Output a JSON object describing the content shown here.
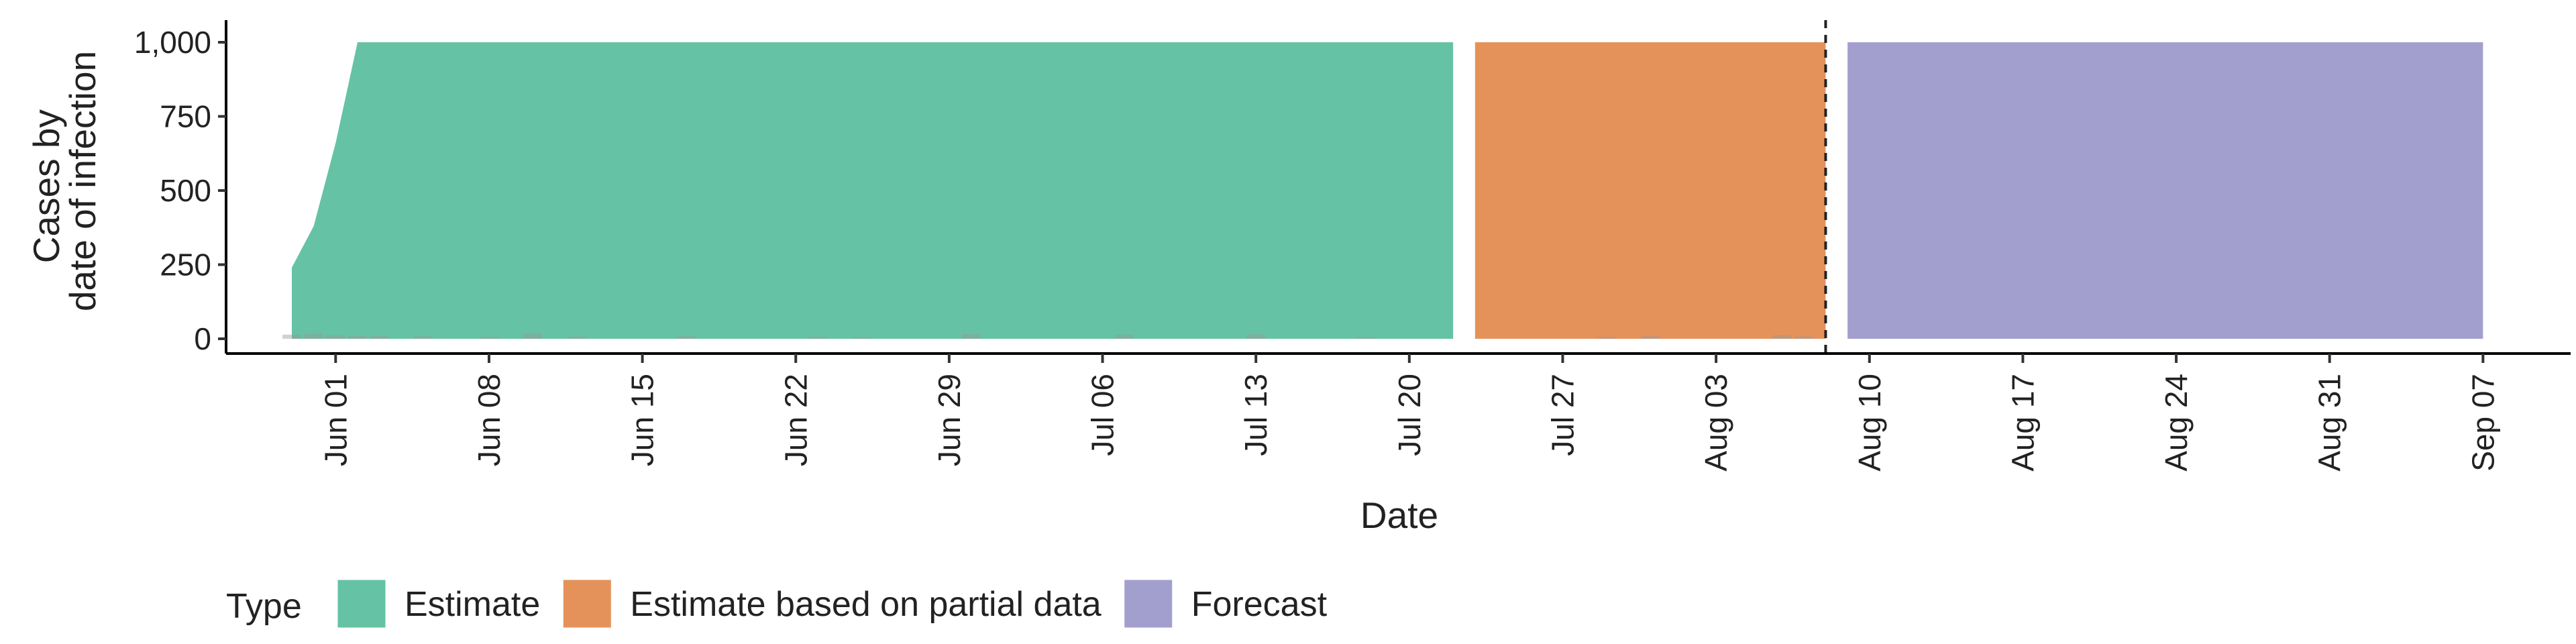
{
  "chart_data": {
    "type": "area",
    "title": "",
    "xlabel": "Date",
    "ylabel": [
      "Cases by",
      "date of infection"
    ],
    "ylim": [
      0,
      1000
    ],
    "y_ticks": [
      {
        "value": 0,
        "label": "0"
      },
      {
        "value": 250,
        "label": "250"
      },
      {
        "value": 500,
        "label": "500"
      },
      {
        "value": 750,
        "label": "750"
      },
      {
        "value": 1000,
        "label": "1,000"
      }
    ],
    "xlim": [
      "2020-05-27",
      "2020-09-11"
    ],
    "x_ticks": [
      {
        "date": "2020-06-01",
        "label": "Jun 01"
      },
      {
        "date": "2020-06-08",
        "label": "Jun 08"
      },
      {
        "date": "2020-06-15",
        "label": "Jun 15"
      },
      {
        "date": "2020-06-22",
        "label": "Jun 22"
      },
      {
        "date": "2020-06-29",
        "label": "Jun 29"
      },
      {
        "date": "2020-07-06",
        "label": "Jul 06"
      },
      {
        "date": "2020-07-13",
        "label": "Jul 13"
      },
      {
        "date": "2020-07-20",
        "label": "Jul 20"
      },
      {
        "date": "2020-07-27",
        "label": "Jul 27"
      },
      {
        "date": "2020-08-03",
        "label": "Aug 03"
      },
      {
        "date": "2020-08-10",
        "label": "Aug 10"
      },
      {
        "date": "2020-08-17",
        "label": "Aug 17"
      },
      {
        "date": "2020-08-24",
        "label": "Aug 24"
      },
      {
        "date": "2020-08-31",
        "label": "Aug 31"
      },
      {
        "date": "2020-09-07",
        "label": "Sep 07"
      }
    ],
    "grid": false,
    "legend_position": "bottom-left",
    "legend_title": "Type",
    "series": [
      {
        "name": "Estimate",
        "color": "#66c2a5",
        "points": [
          {
            "date": "2020-05-30",
            "upper": 240
          },
          {
            "date": "2020-05-31",
            "upper": 380
          },
          {
            "date": "2020-06-01",
            "upper": 660
          },
          {
            "date": "2020-06-02",
            "upper": 1000
          },
          {
            "date": "2020-07-22",
            "upper": 1000
          }
        ]
      },
      {
        "name": "Estimate based on partial data",
        "color": "#e5925a",
        "points": [
          {
            "date": "2020-07-23",
            "upper": 1000
          },
          {
            "date": "2020-08-08",
            "upper": 1000
          }
        ]
      },
      {
        "name": "Forecast",
        "color": "#a29fcf",
        "points": [
          {
            "date": "2020-08-09",
            "upper": 1000
          },
          {
            "date": "2020-09-07",
            "upper": 1000
          }
        ]
      }
    ],
    "observed_cases": [
      {
        "date": "2020-05-30",
        "value": 14
      },
      {
        "date": "2020-05-31",
        "value": 17
      },
      {
        "date": "2020-06-01",
        "value": 12
      },
      {
        "date": "2020-06-02",
        "value": 10
      },
      {
        "date": "2020-06-03",
        "value": 9
      },
      {
        "date": "2020-06-05",
        "value": 8
      },
      {
        "date": "2020-06-08",
        "value": 6
      },
      {
        "date": "2020-06-10",
        "value": 18
      },
      {
        "date": "2020-06-12",
        "value": 7
      },
      {
        "date": "2020-06-17",
        "value": 9
      },
      {
        "date": "2020-06-23",
        "value": 6
      },
      {
        "date": "2020-06-25",
        "value": 5
      },
      {
        "date": "2020-06-30",
        "value": 16
      },
      {
        "date": "2020-07-07",
        "value": 14
      },
      {
        "date": "2020-07-13",
        "value": 15
      },
      {
        "date": "2020-07-18",
        "value": 5
      },
      {
        "date": "2020-07-29",
        "value": 6
      },
      {
        "date": "2020-07-31",
        "value": 9
      },
      {
        "date": "2020-08-06",
        "value": 12
      },
      {
        "date": "2020-08-07",
        "value": 8
      }
    ],
    "reference_line": {
      "date": "2020-08-08",
      "style": "dashed"
    }
  }
}
